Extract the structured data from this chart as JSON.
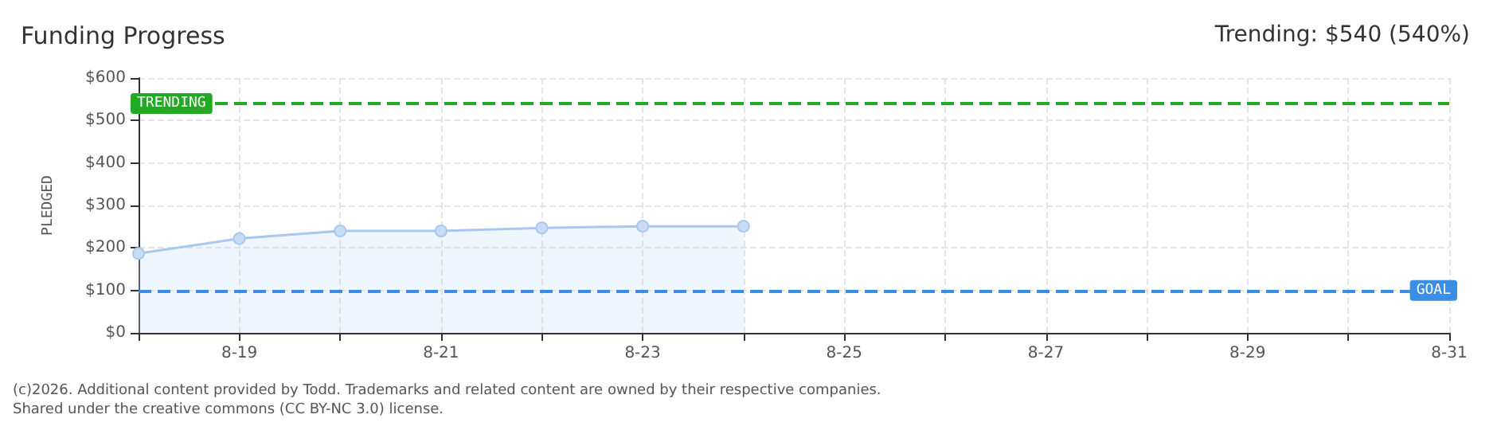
{
  "chart_data": {
    "type": "area",
    "title": "Funding Progress",
    "subtitle": "Trending: $540 (540%)",
    "ylabel": "PLEDGED",
    "x": [
      "--08-18",
      "--08-19",
      "--08-20",
      "--08-21",
      "--08-22",
      "--08-23",
      "--08-24"
    ],
    "series": [
      {
        "color": "#a8c8f0",
        "values": [
          187,
          222,
          240,
          240,
          247,
          251,
          251
        ]
      }
    ],
    "xlim": [
      "--08-18",
      "--08-31"
    ],
    "xticks": [
      {
        "value": "--08-18",
        "label": null
      },
      {
        "value": "--08-19",
        "label": "8-19"
      },
      {
        "value": "--08-20",
        "label": null
      },
      {
        "value": "--08-21",
        "label": "8-21"
      },
      {
        "value": "--08-22",
        "label": null
      },
      {
        "value": "--08-23",
        "label": "8-23"
      },
      {
        "value": "--08-24",
        "label": null
      },
      {
        "value": "--08-25",
        "label": "8-25"
      },
      {
        "value": "--08-26",
        "label": null
      },
      {
        "value": "--08-27",
        "label": "8-27"
      },
      {
        "value": "--08-28",
        "label": null
      },
      {
        "value": "--08-29",
        "label": "8-29"
      },
      {
        "value": "--08-30",
        "label": null
      },
      {
        "value": "--08-31",
        "label": "8-31"
      }
    ],
    "ylim": [
      0,
      600
    ],
    "yticks": [
      {
        "value": 0,
        "label": "$0"
      },
      {
        "value": 100,
        "label": "$100"
      },
      {
        "value": 200,
        "label": "$200"
      },
      {
        "value": 300,
        "label": "$300"
      },
      {
        "value": 400,
        "label": "$400"
      },
      {
        "value": 500,
        "label": "$500"
      },
      {
        "value": 600,
        "label": "$600"
      }
    ],
    "ref_lines": [
      {
        "axis": "y",
        "value": 540,
        "label": "TRENDING",
        "color": "#22aa22",
        "line_style": "dashed"
      },
      {
        "axis": "y",
        "value": 100,
        "label": "GOAL",
        "color": "#3a8ee6",
        "line_style": "dashed"
      }
    ],
    "grid": true,
    "marker": "circle",
    "line_style": "solid",
    "annotations": [
      "(c)2026. Additional content provided by Todd. Trademarks and related content are owned by their respective companies.",
      "Shared under the creative commons (CC BY-NC 3.0) license."
    ]
  }
}
